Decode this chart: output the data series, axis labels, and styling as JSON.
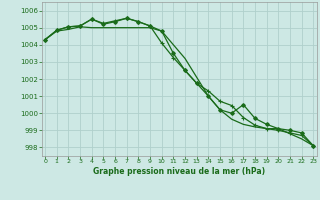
{
  "title": "Graphe pression niveau de la mer (hPa)",
  "bg_color": "#cde8e4",
  "grid_color": "#b0d0cc",
  "line_color": "#1a6b1a",
  "xlim": [
    -0.3,
    23.3
  ],
  "ylim": [
    997.5,
    1006.5
  ],
  "yticks": [
    998,
    999,
    1000,
    1001,
    1002,
    1003,
    1004,
    1005,
    1006
  ],
  "xticks": [
    0,
    1,
    2,
    3,
    4,
    5,
    6,
    7,
    8,
    9,
    10,
    11,
    12,
    13,
    14,
    15,
    16,
    17,
    18,
    19,
    20,
    21,
    22,
    23
  ],
  "s1": [
    1004.3,
    1004.8,
    1004.9,
    1005.05,
    1005.0,
    1005.0,
    1005.0,
    1005.0,
    1005.0,
    1005.0,
    1004.8,
    1004.0,
    1003.2,
    1002.1,
    1001.0,
    1000.2,
    999.65,
    999.35,
    999.2,
    999.1,
    999.1,
    998.8,
    998.5,
    998.1
  ],
  "s2": [
    1004.3,
    1004.85,
    1005.05,
    1005.1,
    1005.5,
    1005.25,
    1005.4,
    1005.55,
    1005.35,
    1005.1,
    1004.1,
    1003.25,
    1002.5,
    1001.75,
    1001.3,
    1000.7,
    1000.45,
    999.75,
    999.3,
    999.1,
    999.0,
    998.85,
    998.7,
    998.1
  ],
  "s3": [
    1004.3,
    1004.85,
    1005.05,
    1005.1,
    1005.5,
    1005.2,
    1005.35,
    1005.55,
    1005.35,
    1005.1,
    1004.8,
    1003.5,
    1002.5,
    1001.75,
    1001.0,
    1000.2,
    1000.0,
    1000.5,
    999.7,
    999.35,
    999.1,
    999.0,
    998.85,
    998.1
  ]
}
